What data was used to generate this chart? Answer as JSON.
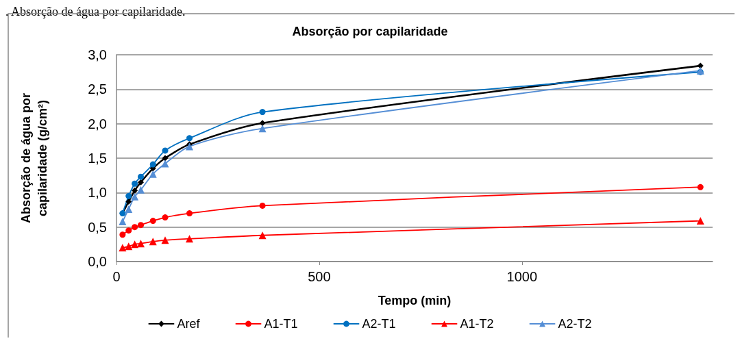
{
  "chart_data": {
    "type": "line",
    "title": "Absorção por capilaridade",
    "xlabel": "Tempo (min)",
    "ylabel": "Absorção de água por\ncapilaridade (g/cm²)",
    "annotations": [
      ". Absorção de água por capilaridade."
    ],
    "x": [
      15,
      30,
      45,
      60,
      90,
      120,
      180,
      360,
      1440
    ],
    "series": [
      {
        "name": "Aref",
        "color": "#000000",
        "marker": "diamond",
        "values": [
          0.7,
          0.87,
          1.03,
          1.15,
          1.35,
          1.5,
          1.7,
          2.01,
          2.84
        ]
      },
      {
        "name": "A1-T1",
        "color": "#ff0000",
        "marker": "circle",
        "values": [
          0.39,
          0.45,
          0.5,
          0.53,
          0.59,
          0.64,
          0.7,
          0.81,
          1.08
        ]
      },
      {
        "name": "A2-T1",
        "color": "#0070c0",
        "marker": "circle",
        "values": [
          0.7,
          0.95,
          1.13,
          1.23,
          1.41,
          1.61,
          1.79,
          2.17,
          2.75
        ]
      },
      {
        "name": "A1-T2",
        "color": "#ff0000",
        "marker": "triangle",
        "values": [
          0.2,
          0.22,
          0.25,
          0.26,
          0.29,
          0.31,
          0.33,
          0.38,
          0.59
        ]
      },
      {
        "name": "A2-T2",
        "color": "#558ed5",
        "marker": "triangle",
        "values": [
          0.58,
          0.76,
          0.94,
          1.04,
          1.27,
          1.42,
          1.67,
          1.93,
          2.77
        ]
      }
    ],
    "xlim": [
      0,
      1470
    ],
    "xticks": [
      0,
      500,
      1000
    ],
    "ylim": [
      0,
      3
    ],
    "yticks": [
      {
        "value": 0,
        "label": "0,0"
      },
      {
        "value": 0.5,
        "label": "0,5"
      },
      {
        "value": 1,
        "label": "1,0"
      },
      {
        "value": 1.5,
        "label": "1,5"
      },
      {
        "value": 2,
        "label": "2,0"
      },
      {
        "value": 2.5,
        "label": "2,5"
      },
      {
        "value": 3,
        "label": "3,0"
      }
    ],
    "grid": "y",
    "legend": "bottom",
    "line_style": "solid"
  }
}
